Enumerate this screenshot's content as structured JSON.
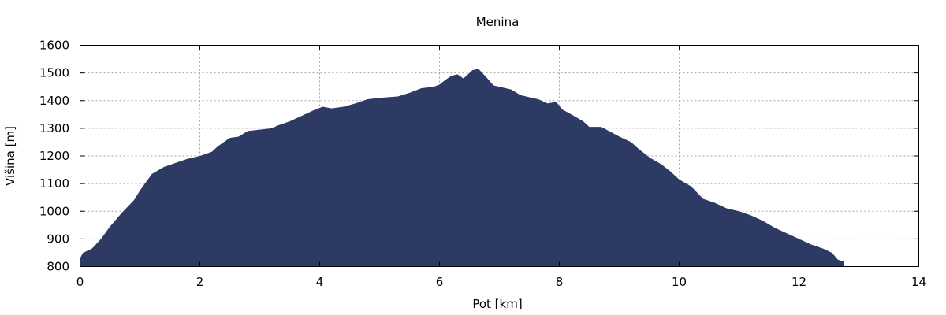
{
  "chart_data": {
    "type": "area",
    "title": "Menina",
    "xlabel": "Pot [km]",
    "ylabel": "Višina [m]",
    "xlim": [
      0,
      14
    ],
    "ylim": [
      800,
      1600
    ],
    "xticks": [
      "0",
      "2",
      "4",
      "6",
      "8",
      "10",
      "12",
      "14"
    ],
    "yticks": [
      "800",
      "900",
      "1000",
      "1100",
      "1200",
      "1300",
      "1400",
      "1500",
      "1600"
    ],
    "grid": true,
    "fill_color": "#2d3a63",
    "series": [
      {
        "x": [
          0,
          0.05,
          0.2,
          0.35,
          0.5,
          0.7,
          0.9,
          1.0,
          1.2,
          1.4,
          1.6,
          1.8,
          2.0,
          2.2,
          2.3,
          2.5,
          2.65,
          2.8,
          3.0,
          3.2,
          3.3,
          3.5,
          3.7,
          3.9,
          4.05,
          4.2,
          4.4,
          4.6,
          4.8,
          5.0,
          5.3,
          5.5,
          5.7,
          5.9,
          6.0,
          6.1,
          6.2,
          6.3,
          6.4,
          6.55,
          6.65,
          6.8,
          6.9,
          7.0,
          7.2,
          7.35,
          7.5,
          7.65,
          7.8,
          7.95,
          8.05,
          8.2,
          8.4,
          8.5,
          8.7,
          8.9,
          9.0,
          9.2,
          9.3,
          9.5,
          9.7,
          9.85,
          10.0,
          10.2,
          10.4,
          10.6,
          10.8,
          11.0,
          11.2,
          11.4,
          11.6,
          11.8,
          12.0,
          12.2,
          12.4,
          12.55,
          12.65,
          12.75
        ],
        "y": [
          830,
          850,
          865,
          900,
          945,
          995,
          1040,
          1075,
          1135,
          1160,
          1175,
          1190,
          1200,
          1215,
          1235,
          1265,
          1270,
          1290,
          1295,
          1300,
          1310,
          1325,
          1345,
          1365,
          1378,
          1372,
          1378,
          1390,
          1405,
          1410,
          1415,
          1428,
          1445,
          1450,
          1458,
          1475,
          1490,
          1495,
          1480,
          1510,
          1515,
          1480,
          1455,
          1450,
          1440,
          1420,
          1412,
          1405,
          1390,
          1395,
          1368,
          1350,
          1325,
          1305,
          1305,
          1282,
          1270,
          1250,
          1230,
          1195,
          1170,
          1145,
          1115,
          1090,
          1045,
          1030,
          1010,
          1000,
          985,
          965,
          940,
          920,
          900,
          880,
          865,
          850,
          825,
          818
        ]
      }
    ]
  }
}
